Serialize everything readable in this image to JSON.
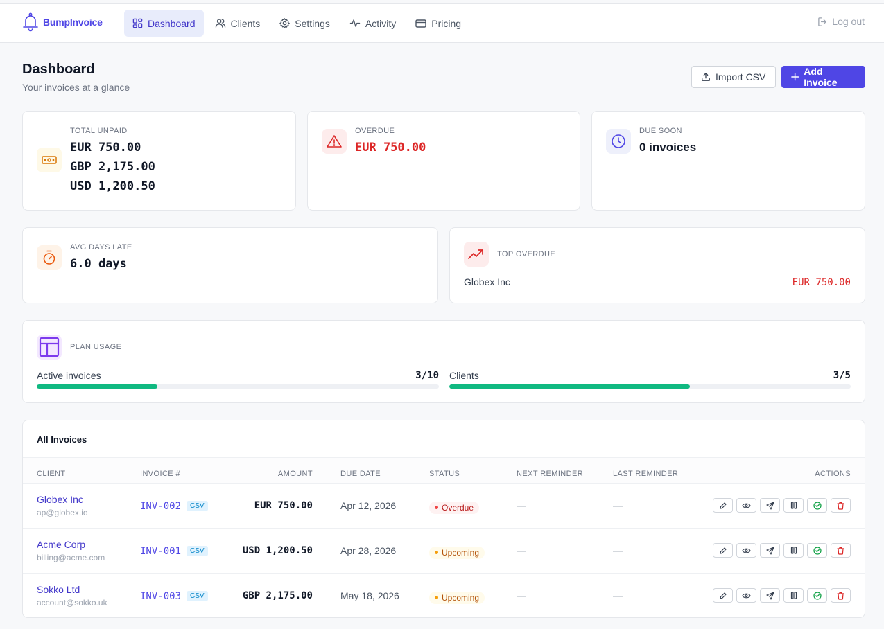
{
  "brand": {
    "name": "BumpInvoice"
  },
  "nav": {
    "items": [
      {
        "label": "Dashboard",
        "icon": "grid-icon",
        "active": true
      },
      {
        "label": "Clients",
        "icon": "users-icon"
      },
      {
        "label": "Settings",
        "icon": "gear-icon"
      },
      {
        "label": "Activity",
        "icon": "activity-icon"
      },
      {
        "label": "Pricing",
        "icon": "card-icon"
      }
    ],
    "logout": "Log out"
  },
  "header": {
    "title": "Dashboard",
    "subtitle": "Your invoices at a glance",
    "import_label": "Import CSV",
    "add_label": "Add Invoice"
  },
  "stats": {
    "total_unpaid": {
      "label": "TOTAL UNPAID",
      "values": [
        "EUR 750.00",
        "GBP 2,175.00",
        "USD 1,200.50"
      ]
    },
    "overdue": {
      "label": "OVERDUE",
      "value": "EUR 750.00"
    },
    "due_soon": {
      "label": "DUE SOON",
      "value": "0 invoices"
    },
    "avg_days_late": {
      "label": "AVG DAYS LATE",
      "value": "6.0 days"
    },
    "top_overdue": {
      "label": "TOP OVERDUE",
      "client": "Globex Inc",
      "amount": "EUR 750.00"
    }
  },
  "plan_usage": {
    "label": "PLAN USAGE",
    "active_invoices": {
      "label": "Active invoices",
      "value": "3/10",
      "fraction": 0.3
    },
    "clients": {
      "label": "Clients",
      "value": "3/5",
      "fraction": 0.6
    }
  },
  "table": {
    "title": "All Invoices",
    "columns": [
      "CLIENT",
      "INVOICE #",
      "AMOUNT",
      "DUE DATE",
      "STATUS",
      "NEXT REMINDER",
      "LAST REMINDER",
      "ACTIONS"
    ],
    "rows": [
      {
        "client": "Globex Inc",
        "email": "ap@globex.io",
        "invoice": "INV-002",
        "tag": "CSV",
        "amount": "EUR 750.00",
        "due": "Apr 12, 2026",
        "status": "Overdue",
        "status_kind": "overdue",
        "next": "—",
        "last": "—"
      },
      {
        "client": "Acme Corp",
        "email": "billing@acme.com",
        "invoice": "INV-001",
        "tag": "CSV",
        "amount": "USD 1,200.50",
        "due": "Apr 28, 2026",
        "status": "Upcoming",
        "status_kind": "upcoming",
        "next": "—",
        "last": "—"
      },
      {
        "client": "Sokko Ltd",
        "email": "account@sokko.uk",
        "invoice": "INV-003",
        "tag": "CSV",
        "amount": "GBP 2,175.00",
        "due": "May 18, 2026",
        "status": "Upcoming",
        "status_kind": "upcoming",
        "next": "—",
        "last": "—"
      }
    ]
  },
  "colors": {
    "accent": "#4f46e5",
    "danger": "#dc2626",
    "success": "#10b981",
    "warning": "#f59e0b"
  }
}
